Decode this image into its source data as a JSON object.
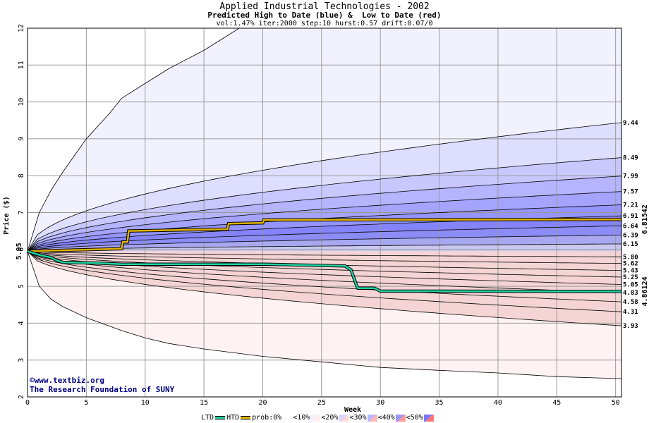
{
  "header": {
    "title": "Applied Industrial Technologies - 2002",
    "subtitle": "Predicted High to Date (blue) &  Low to Date (red)",
    "params": "vol:1.47% iter:2000 step:10 hurst:0.57 drift:0.07/0"
  },
  "credits": {
    "site": "www.textbiz.org",
    "org": "The Research Foundation of SUNY",
    "copyright_symbol": "©"
  },
  "legend": {
    "ltd": "LTD",
    "htd": "HTD",
    "prob": "prob:0%",
    "b10": "<10%",
    "b20": "<20%",
    "b30": "<30%",
    "b40": "<40%",
    "b50": "<50%",
    "ltd_color": "#20d0a0",
    "htd_color": "#e0b000"
  },
  "chart_data": {
    "type": "area",
    "xlabel": "Week",
    "ylabel": "Price ($)",
    "xlim": [
      0,
      50.5
    ],
    "ylim": [
      2,
      12
    ],
    "xticks": [
      0,
      5,
      10,
      15,
      20,
      25,
      30,
      35,
      40,
      45,
      50
    ],
    "yticks": [
      2,
      3,
      4,
      5,
      6,
      7,
      8,
      9,
      10,
      11,
      12
    ],
    "grid": true,
    "start_price": 5.95,
    "start_label": "5.95",
    "htd_end_label": "6.81542",
    "ltd_end_label": "4.86124",
    "upper_quantile_end_values": [
      9.44,
      8.49,
      7.99,
      7.57,
      7.21,
      6.91,
      6.64,
      6.39,
      6.15
    ],
    "upper_quantile_end_labels": [
      "9.44",
      "8.49",
      "7.99",
      "7.57",
      "7.21",
      "6.91",
      "6.64",
      "6.39",
      "6.15"
    ],
    "lower_quantile_end_values": [
      5.8,
      5.62,
      5.43,
      5.25,
      5.05,
      4.83,
      4.58,
      4.31,
      3.93
    ],
    "lower_quantile_end_labels": [
      "5.80",
      "5.62",
      "5.43",
      "5.25",
      "5.05",
      "4.83",
      "4.58",
      "4.31",
      "3.93"
    ],
    "upper_envelope": {
      "x": [
        0,
        1,
        2,
        3,
        5,
        7,
        8,
        10,
        12,
        15,
        17,
        18
      ],
      "y": [
        5.95,
        7.0,
        7.6,
        8.1,
        9.0,
        9.7,
        10.1,
        10.5,
        10.9,
        11.4,
        11.8,
        12.0
      ]
    },
    "lower_envelope": {
      "x": [
        0,
        1,
        2,
        3,
        5,
        8,
        10,
        12,
        15,
        20,
        25,
        30,
        35,
        40,
        45,
        50
      ],
      "y": [
        5.95,
        5.0,
        4.65,
        4.45,
        4.15,
        3.8,
        3.6,
        3.45,
        3.3,
        3.1,
        2.95,
        2.8,
        2.72,
        2.65,
        2.55,
        2.5
      ]
    },
    "series": [
      {
        "name": "HTD",
        "x": [
          0,
          8,
          8.1,
          8.5,
          8.6,
          17,
          17.1,
          20,
          20.1,
          50.5
        ],
        "y": [
          5.95,
          6.02,
          6.2,
          6.2,
          6.5,
          6.55,
          6.7,
          6.72,
          6.8,
          6.815
        ]
      },
      {
        "name": "LTD",
        "x": [
          0,
          1,
          2,
          2.5,
          3,
          6,
          8,
          10,
          15,
          20,
          27,
          27.5,
          28,
          28.1,
          29.5,
          30,
          50.5
        ],
        "y": [
          5.95,
          5.85,
          5.78,
          5.7,
          5.65,
          5.63,
          5.6,
          5.6,
          5.6,
          5.6,
          5.55,
          5.45,
          5.0,
          4.95,
          4.95,
          4.87,
          4.86
        ]
      }
    ]
  }
}
